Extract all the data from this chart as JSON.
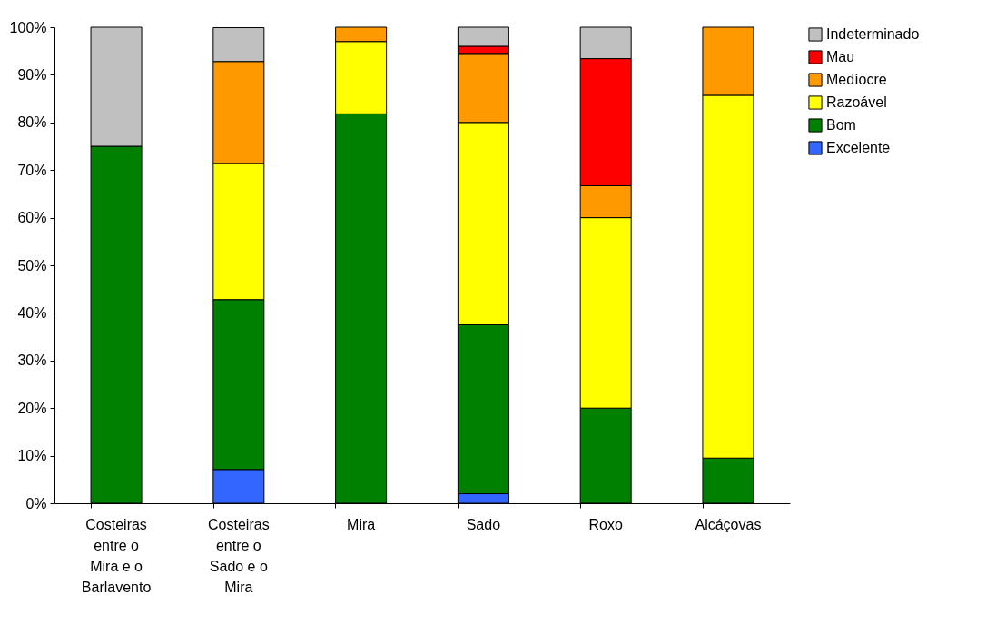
{
  "chart_data": {
    "type": "bar",
    "stacked": true,
    "categories": [
      "Costeiras entre o Mira e o Barlavento",
      "Costeiras entre o Sado e o Mira",
      "Mira",
      "Sado",
      "Roxo",
      "Alcáçovas"
    ],
    "series": [
      {
        "name": "Excelente",
        "color": "#3366ff",
        "values": [
          0,
          7.1,
          0,
          2,
          0,
          0
        ]
      },
      {
        "name": "Bom",
        "color": "#008000",
        "values": [
          75,
          35.7,
          81.8,
          35.5,
          20,
          9.5
        ]
      },
      {
        "name": "Razoável",
        "color": "#ffff00",
        "values": [
          0,
          28.6,
          15.2,
          42.5,
          40,
          76.2
        ]
      },
      {
        "name": "Medíocre",
        "color": "#ff9900",
        "values": [
          0,
          21.4,
          3,
          14.5,
          6.7,
          14.3
        ]
      },
      {
        "name": "Mau",
        "color": "#ff0000",
        "values": [
          0,
          0,
          0,
          1.5,
          26.7,
          0
        ]
      },
      {
        "name": "Indeterminado",
        "color": "#c0c0c0",
        "values": [
          25,
          7.1,
          0,
          4,
          6.6,
          0
        ]
      }
    ],
    "ylim": [
      0,
      100
    ],
    "yticks": [
      {
        "value": 0,
        "label": "0%"
      },
      {
        "value": 10,
        "label": "10%"
      },
      {
        "value": 20,
        "label": "20%"
      },
      {
        "value": 30,
        "label": "30%"
      },
      {
        "value": 40,
        "label": "40%"
      },
      {
        "value": 50,
        "label": "50%"
      },
      {
        "value": 60,
        "label": "60%"
      },
      {
        "value": 70,
        "label": "70%"
      },
      {
        "value": 80,
        "label": "80%"
      },
      {
        "value": 90,
        "label": "90%"
      },
      {
        "value": 100,
        "label": "100%"
      }
    ],
    "grid": false,
    "legend": "right"
  }
}
